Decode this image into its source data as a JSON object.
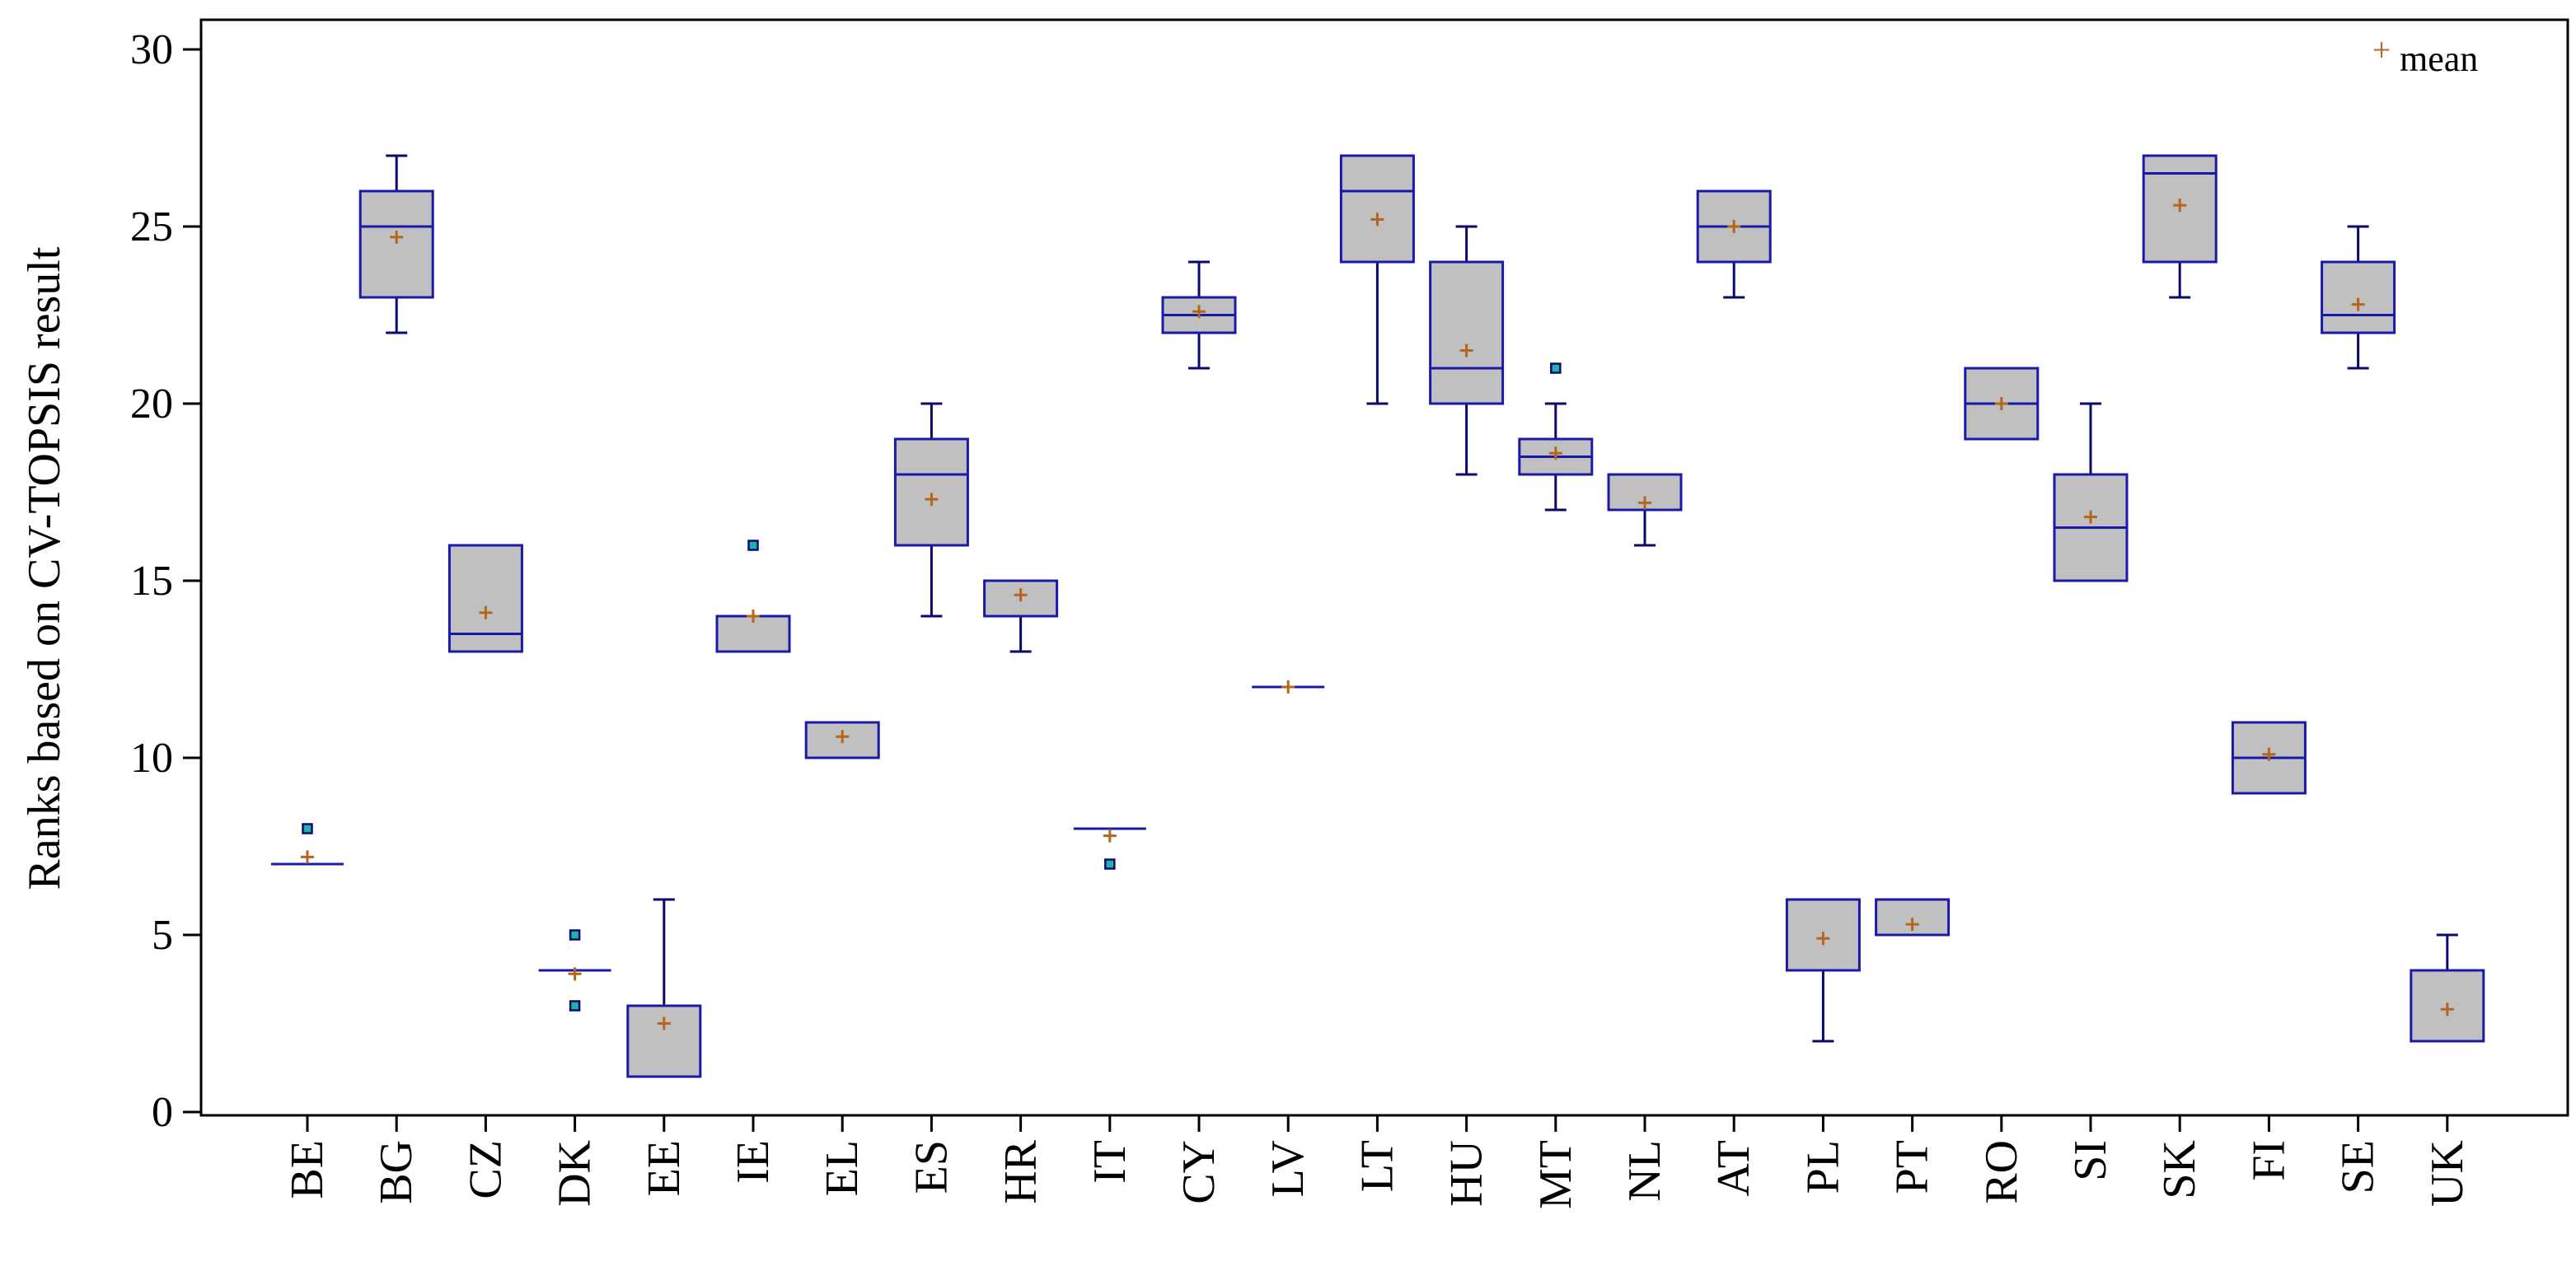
{
  "chart_data": {
    "type": "box",
    "ylabel": "Ranks based on CV-TOPSIS result",
    "xlabel": "",
    "ylim": [
      0,
      30
    ],
    "yticks": [
      0,
      5,
      10,
      15,
      20,
      25,
      30
    ],
    "legend": {
      "label": "mean",
      "position": "top-right"
    },
    "colors": {
      "box_fill": "#c0c0c0",
      "box_stroke": "#1a1aa8",
      "whisker": "#0a0a6e",
      "mean_marker": "#b5651d",
      "outlier_fill": "#20b2aa",
      "outlier_stroke": "#0a0a6e",
      "axis": "#000000"
    },
    "categories": [
      "BE",
      "BG",
      "CZ",
      "DK",
      "EE",
      "IE",
      "EL",
      "ES",
      "HR",
      "IT",
      "CY",
      "LV",
      "LT",
      "HU",
      "MT",
      "NL",
      "AT",
      "PL",
      "PT",
      "RO",
      "SI",
      "SK",
      "FI",
      "SE",
      "UK"
    ],
    "boxes": [
      {
        "category": "BE",
        "min": 7,
        "q1": 7,
        "median": 7,
        "q3": 7,
        "max": 7,
        "mean": 7.2,
        "outliers": [
          8
        ]
      },
      {
        "category": "BG",
        "min": 22,
        "q1": 23,
        "median": 25,
        "q3": 26,
        "max": 27,
        "mean": 24.7,
        "outliers": []
      },
      {
        "category": "CZ",
        "min": 13,
        "q1": 13,
        "median": 13.5,
        "q3": 16,
        "max": 16,
        "mean": 14.1,
        "outliers": []
      },
      {
        "category": "DK",
        "min": 4,
        "q1": 4,
        "median": 4,
        "q3": 4,
        "max": 4,
        "mean": 3.9,
        "outliers": [
          5,
          3
        ]
      },
      {
        "category": "EE",
        "min": 1,
        "q1": 1,
        "median": 1,
        "q3": 3,
        "max": 6,
        "mean": 2.5,
        "outliers": []
      },
      {
        "category": "IE",
        "min": 13,
        "q1": 13,
        "median": 13,
        "q3": 14,
        "max": 14,
        "mean": 14,
        "outliers": [
          16
        ]
      },
      {
        "category": "EL",
        "min": 10,
        "q1": 10,
        "median": 10,
        "q3": 11,
        "max": 11,
        "mean": 10.6,
        "outliers": []
      },
      {
        "category": "ES",
        "min": 14,
        "q1": 16,
        "median": 18,
        "q3": 19,
        "max": 20,
        "mean": 17.3,
        "outliers": []
      },
      {
        "category": "HR",
        "min": 13,
        "q1": 14,
        "median": 14,
        "q3": 15,
        "max": 15,
        "mean": 14.6,
        "outliers": []
      },
      {
        "category": "IT",
        "min": 8,
        "q1": 8,
        "median": 8,
        "q3": 8,
        "max": 8,
        "mean": 7.8,
        "outliers": [
          7
        ]
      },
      {
        "category": "CY",
        "min": 21,
        "q1": 22,
        "median": 22.5,
        "q3": 23,
        "max": 24,
        "mean": 22.6,
        "outliers": []
      },
      {
        "category": "LV",
        "min": 12,
        "q1": 12,
        "median": 12,
        "q3": 12,
        "max": 12,
        "mean": 12,
        "outliers": []
      },
      {
        "category": "LT",
        "min": 20,
        "q1": 24,
        "median": 26,
        "q3": 27,
        "max": 27,
        "mean": 25.2,
        "outliers": []
      },
      {
        "category": "HU",
        "min": 18,
        "q1": 20,
        "median": 21,
        "q3": 24,
        "max": 25,
        "mean": 21.5,
        "outliers": []
      },
      {
        "category": "MT",
        "min": 17,
        "q1": 18,
        "median": 18.5,
        "q3": 19,
        "max": 20,
        "mean": 18.6,
        "outliers": [
          21
        ]
      },
      {
        "category": "NL",
        "min": 16,
        "q1": 17,
        "median": 17,
        "q3": 18,
        "max": 18,
        "mean": 17.2,
        "outliers": []
      },
      {
        "category": "AT",
        "min": 23,
        "q1": 24,
        "median": 25,
        "q3": 26,
        "max": 26,
        "mean": 25,
        "outliers": []
      },
      {
        "category": "PL",
        "min": 2,
        "q1": 4,
        "median": 4,
        "q3": 6,
        "max": 6,
        "mean": 4.9,
        "outliers": []
      },
      {
        "category": "PT",
        "min": 5,
        "q1": 5,
        "median": 5,
        "q3": 6,
        "max": 6,
        "mean": 5.3,
        "outliers": []
      },
      {
        "category": "RO",
        "min": 19,
        "q1": 19,
        "median": 20,
        "q3": 21,
        "max": 21,
        "mean": 20,
        "outliers": []
      },
      {
        "category": "SI",
        "min": 15,
        "q1": 15,
        "median": 16.5,
        "q3": 18,
        "max": 20,
        "mean": 16.8,
        "outliers": []
      },
      {
        "category": "SK",
        "min": 23,
        "q1": 24,
        "median": 26.5,
        "q3": 27,
        "max": 27,
        "mean": 25.6,
        "outliers": []
      },
      {
        "category": "FI",
        "min": 9,
        "q1": 9,
        "median": 10,
        "q3": 11,
        "max": 11,
        "mean": 10.1,
        "outliers": []
      },
      {
        "category": "SE",
        "min": 21,
        "q1": 22,
        "median": 22.5,
        "q3": 24,
        "max": 25,
        "mean": 22.8,
        "outliers": []
      },
      {
        "category": "UK",
        "min": 2,
        "q1": 2,
        "median": 2,
        "q3": 4,
        "max": 5,
        "mean": 2.9,
        "outliers": []
      }
    ]
  }
}
